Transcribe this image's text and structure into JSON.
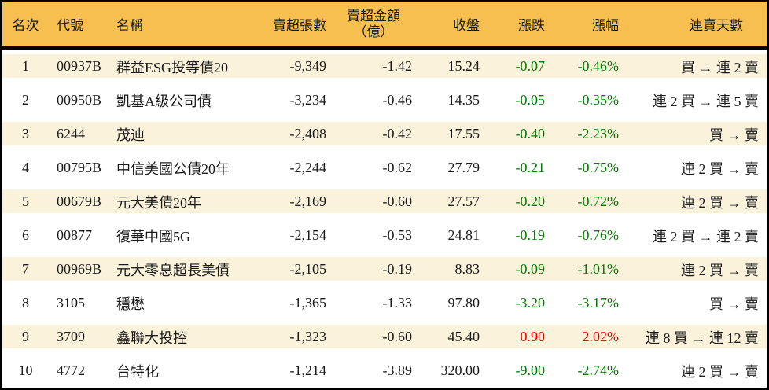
{
  "colors": {
    "header_bg": "#F7BF4F",
    "row_alt_bg": "#FBF2DB",
    "row_bg": "#FFFFFF",
    "border_black": "#000000",
    "text": "#1B1B1B",
    "down_green": "#007D00",
    "up_red": "#F20000"
  },
  "table": {
    "columns": [
      {
        "key": "rank",
        "label": "名次"
      },
      {
        "key": "code",
        "label": "代號"
      },
      {
        "key": "name",
        "label": "名稱"
      },
      {
        "key": "volume",
        "label": "賣超張數"
      },
      {
        "key": "amount",
        "label": "賣超金額",
        "label2": "（億）"
      },
      {
        "key": "close",
        "label": "收盤"
      },
      {
        "key": "change",
        "label": "漲跌"
      },
      {
        "key": "pct",
        "label": "漲幅"
      },
      {
        "key": "streak",
        "label": "連賣天數"
      }
    ],
    "rows": [
      {
        "rank": "1",
        "code": "00937B",
        "name": "群益ESG投等債20",
        "volume": "-9,349",
        "amount": "-1.42",
        "close": "15.24",
        "change": "-0.07",
        "pct": "-0.46%",
        "streak": "買 → 連 2 賣",
        "trend": "down"
      },
      {
        "rank": "2",
        "code": "00950B",
        "name": "凱基A級公司債",
        "volume": "-3,234",
        "amount": "-0.46",
        "close": "14.35",
        "change": "-0.05",
        "pct": "-0.35%",
        "streak": "連 2 買 → 連 5 賣",
        "trend": "down"
      },
      {
        "rank": "3",
        "code": "6244",
        "name": "茂迪",
        "volume": "-2,408",
        "amount": "-0.42",
        "close": "17.55",
        "change": "-0.40",
        "pct": "-2.23%",
        "streak": "買 → 賣",
        "trend": "down"
      },
      {
        "rank": "4",
        "code": "00795B",
        "name": "中信美國公債20年",
        "volume": "-2,244",
        "amount": "-0.62",
        "close": "27.79",
        "change": "-0.21",
        "pct": "-0.75%",
        "streak": "連 2 買 → 賣",
        "trend": "down"
      },
      {
        "rank": "5",
        "code": "00679B",
        "name": "元大美債20年",
        "volume": "-2,169",
        "amount": "-0.60",
        "close": "27.57",
        "change": "-0.20",
        "pct": "-0.72%",
        "streak": "連 2 買 → 賣",
        "trend": "down"
      },
      {
        "rank": "6",
        "code": "00877",
        "name": "復華中國5G",
        "volume": "-2,154",
        "amount": "-0.53",
        "close": "24.81",
        "change": "-0.19",
        "pct": "-0.76%",
        "streak": "連 2 買 → 連 2 賣",
        "trend": "down"
      },
      {
        "rank": "7",
        "code": "00969B",
        "name": "元大零息超長美債",
        "volume": "-2,105",
        "amount": "-0.19",
        "close": "8.83",
        "change": "-0.09",
        "pct": "-1.01%",
        "streak": "連 2 買 → 賣",
        "trend": "down"
      },
      {
        "rank": "8",
        "code": "3105",
        "name": "穩懋",
        "volume": "-1,365",
        "amount": "-1.33",
        "close": "97.80",
        "change": "-3.20",
        "pct": "-3.17%",
        "streak": "買 → 賣",
        "trend": "down"
      },
      {
        "rank": "9",
        "code": "3709",
        "name": "鑫聯大投控",
        "volume": "-1,323",
        "amount": "-0.60",
        "close": "45.40",
        "change": "0.90",
        "pct": "2.02%",
        "streak": "連 8 買 → 連 12 賣",
        "trend": "up"
      },
      {
        "rank": "10",
        "code": "4772",
        "name": "台特化",
        "volume": "-1,214",
        "amount": "-3.89",
        "close": "320.00",
        "change": "-9.00",
        "pct": "-2.74%",
        "streak": "連 2 買 → 賣",
        "trend": "down"
      }
    ]
  },
  "chart_data": {
    "type": "table",
    "columns": [
      "名次",
      "代號",
      "名稱",
      "賣超張數",
      "賣超金額（億）",
      "收盤",
      "漲跌",
      "漲幅",
      "連賣天數"
    ],
    "rows": [
      [
        1,
        "00937B",
        "群益ESG投等債20",
        -9349,
        -1.42,
        15.24,
        -0.07,
        "-0.46%",
        "買 → 連 2 賣"
      ],
      [
        2,
        "00950B",
        "凱基A級公司債",
        -3234,
        -0.46,
        14.35,
        -0.05,
        "-0.35%",
        "連 2 買 → 連 5 賣"
      ],
      [
        3,
        "6244",
        "茂迪",
        -2408,
        -0.42,
        17.55,
        -0.4,
        "-2.23%",
        "買 → 賣"
      ],
      [
        4,
        "00795B",
        "中信美國公債20年",
        -2244,
        -0.62,
        27.79,
        -0.21,
        "-0.75%",
        "連 2 買 → 賣"
      ],
      [
        5,
        "00679B",
        "元大美債20年",
        -2169,
        -0.6,
        27.57,
        -0.2,
        "-0.72%",
        "連 2 買 → 賣"
      ],
      [
        6,
        "00877",
        "復華中國5G",
        -2154,
        -0.53,
        24.81,
        -0.19,
        "-0.76%",
        "連 2 買 → 連 2 賣"
      ],
      [
        7,
        "00969B",
        "元大零息超長美債",
        -2105,
        -0.19,
        8.83,
        -0.09,
        "-1.01%",
        "連 2 買 → 賣"
      ],
      [
        8,
        "3105",
        "穩懋",
        -1365,
        -1.33,
        97.8,
        -3.2,
        "-3.17%",
        "買 → 賣"
      ],
      [
        9,
        "3709",
        "鑫聯大投控",
        -1323,
        -0.6,
        45.4,
        0.9,
        "2.02%",
        "連 8 買 → 連 12 賣"
      ],
      [
        10,
        "4772",
        "台特化",
        -1214,
        -3.89,
        320.0,
        -9.0,
        "-2.74%",
        "連 2 買 → 賣"
      ]
    ],
    "layout": {
      "header_position": "top",
      "zebra_striping": true,
      "up_color_convention": "red",
      "down_color_convention": "green"
    }
  }
}
